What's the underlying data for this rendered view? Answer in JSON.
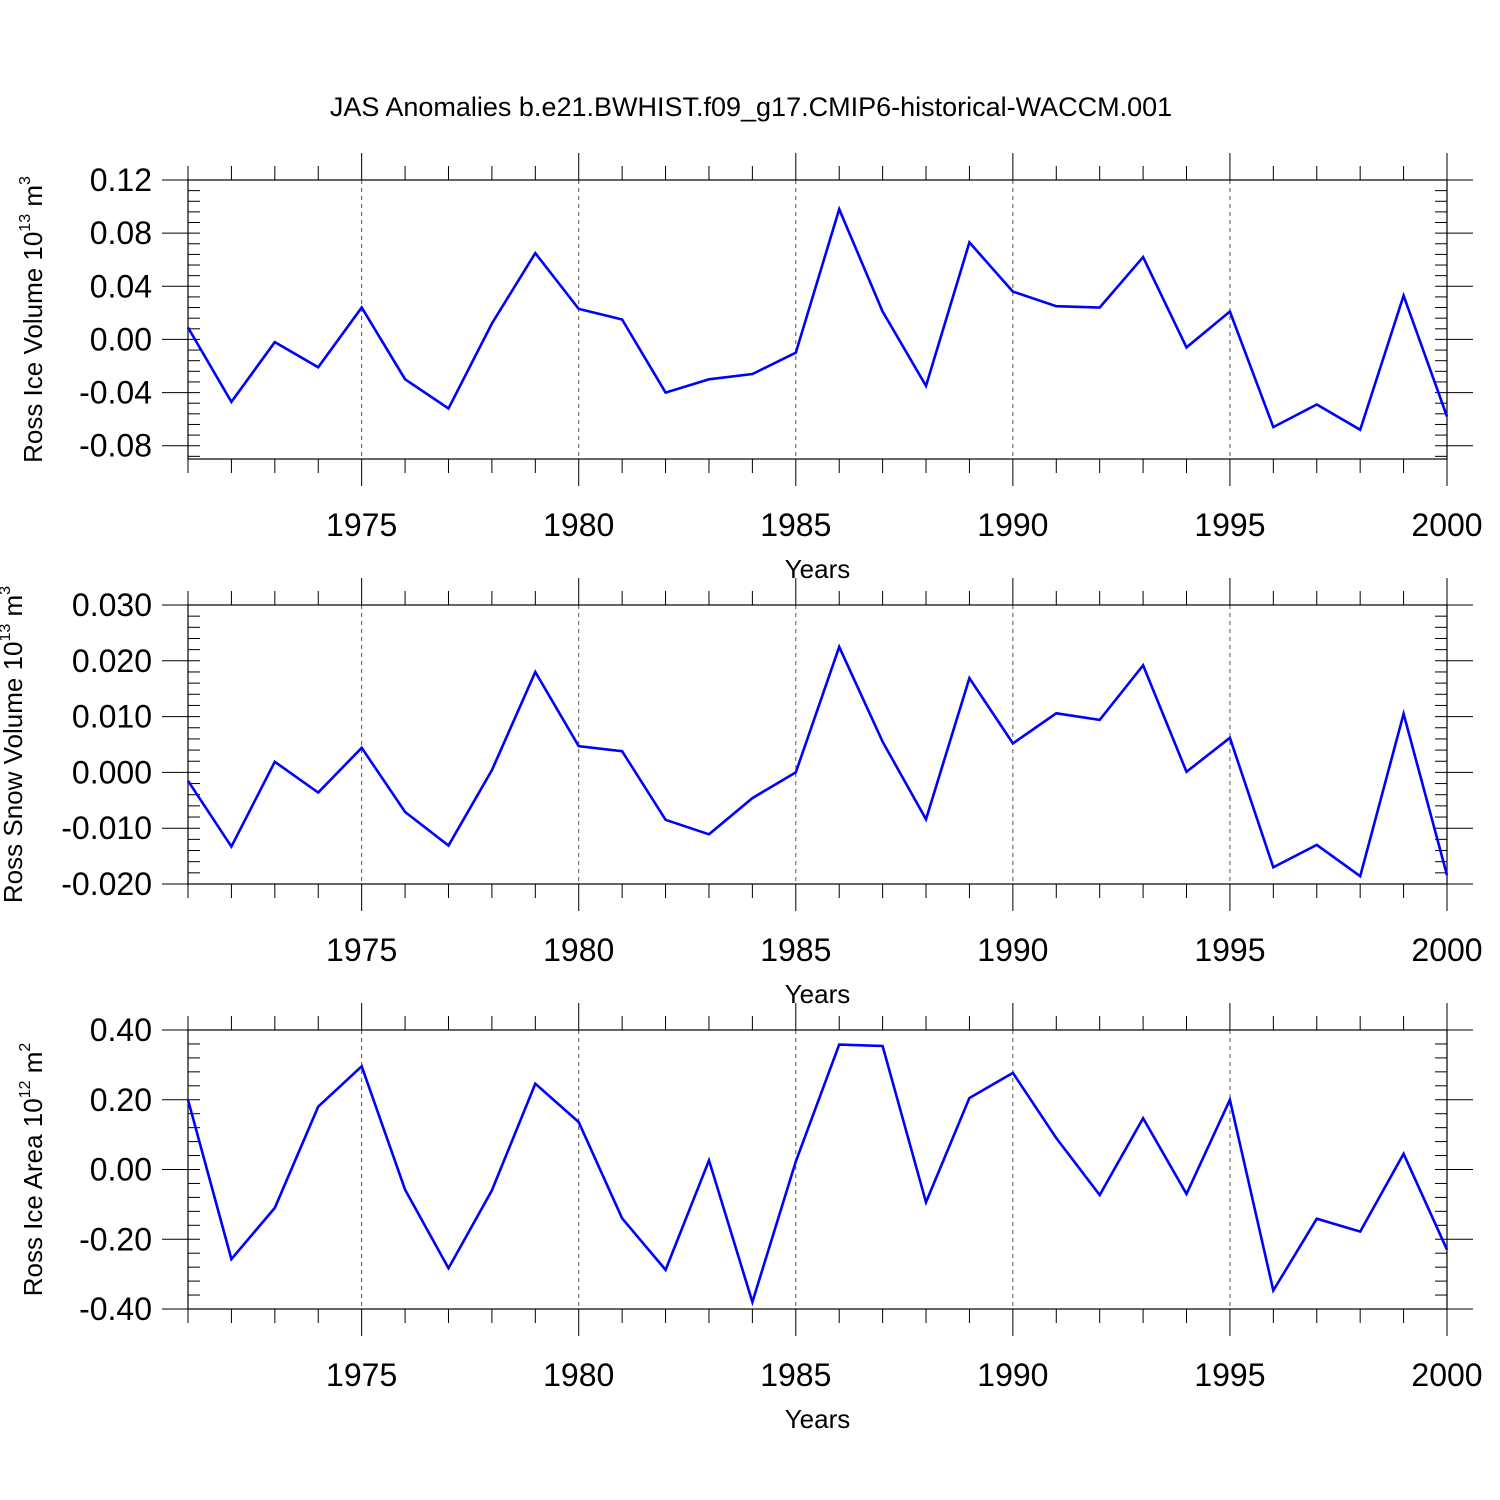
{
  "figure": {
    "title": "JAS Anomalies b.e21.BWHIST.f09_g17.CMIP6-historical-WACCM.001"
  },
  "chart_data": [
    {
      "type": "line",
      "ylabel": "Ross Ice Volume 10",
      "ylabel_exp": "13",
      "ylabel_unit": " m",
      "ylabel_unit_exp": "3",
      "xlabel": "Years",
      "xlim": [
        1971,
        2000
      ],
      "ylim": [
        -0.09,
        0.12
      ],
      "yticks": [
        -0.08,
        -0.04,
        0.0,
        0.04,
        0.08,
        0.12
      ],
      "ytick_labels": [
        "-0.08",
        "-0.04",
        "0.00",
        "0.04",
        "0.08",
        "0.12"
      ],
      "xticks": [
        1975,
        1980,
        1985,
        1990,
        1995,
        2000
      ],
      "xtick_labels": [
        "1975",
        "1980",
        "1985",
        "1990",
        "1995",
        "2000"
      ],
      "line_color": "#0000ff",
      "grid": "dashed vertical at major x ticks",
      "x": [
        1971,
        1972,
        1973,
        1974,
        1975,
        1976,
        1977,
        1978,
        1979,
        1980,
        1981,
        1982,
        1983,
        1984,
        1985,
        1986,
        1987,
        1988,
        1989,
        1990,
        1991,
        1992,
        1993,
        1994,
        1995,
        1996,
        1997,
        1998,
        1999,
        2000
      ],
      "y": [
        0.009,
        -0.047,
        -0.002,
        -0.021,
        0.024,
        -0.03,
        -0.052,
        0.012,
        0.065,
        0.023,
        0.015,
        -0.04,
        -0.03,
        -0.026,
        -0.01,
        0.098,
        0.021,
        -0.035,
        0.073,
        0.036,
        0.025,
        0.024,
        0.062,
        -0.006,
        0.021,
        -0.066,
        -0.049,
        -0.068,
        0.033,
        -0.058
      ]
    },
    {
      "type": "line",
      "ylabel": "Ross Snow Volume 10",
      "ylabel_exp": "13",
      "ylabel_unit": " m",
      "ylabel_unit_exp": "3",
      "xlabel": "Years",
      "xlim": [
        1971,
        2000
      ],
      "ylim": [
        -0.02,
        0.03
      ],
      "yticks": [
        -0.02,
        -0.01,
        0.0,
        0.01,
        0.02,
        0.03
      ],
      "ytick_labels": [
        "-0.020",
        "-0.010",
        "0.000",
        "0.010",
        "0.020",
        "0.030"
      ],
      "xticks": [
        1975,
        1980,
        1985,
        1990,
        1995,
        2000
      ],
      "xtick_labels": [
        "1975",
        "1980",
        "1985",
        "1990",
        "1995",
        "2000"
      ],
      "line_color": "#0000ff",
      "grid": "dashed vertical at major x ticks",
      "x": [
        1971,
        1972,
        1973,
        1974,
        1975,
        1976,
        1977,
        1978,
        1979,
        1980,
        1981,
        1982,
        1983,
        1984,
        1985,
        1986,
        1987,
        1988,
        1989,
        1990,
        1991,
        1992,
        1993,
        1994,
        1995,
        1996,
        1997,
        1998,
        1999,
        2000
      ],
      "y": [
        -0.0015,
        -0.0133,
        0.0019,
        -0.0036,
        0.0044,
        -0.0071,
        -0.0131,
        0.0004,
        0.018,
        0.0047,
        0.0038,
        -0.0085,
        -0.0111,
        -0.0046,
        0.0,
        0.0225,
        0.0055,
        -0.0084,
        0.0169,
        0.0052,
        0.0106,
        0.0094,
        0.0192,
        0.0001,
        0.0062,
        -0.017,
        -0.013,
        -0.0186,
        0.0105,
        -0.0184
      ]
    },
    {
      "type": "line",
      "ylabel": "Ross Ice Area 10",
      "ylabel_exp": "12",
      "ylabel_unit": " m",
      "ylabel_unit_exp": "2",
      "xlabel": "Years",
      "xlim": [
        1971,
        2000
      ],
      "ylim": [
        -0.4,
        0.4
      ],
      "yticks": [
        -0.4,
        -0.2,
        0.0,
        0.2,
        0.4
      ],
      "ytick_labels": [
        "-0.40",
        "-0.20",
        "0.00",
        "0.20",
        "0.40"
      ],
      "xticks": [
        1975,
        1980,
        1985,
        1990,
        1995,
        2000
      ],
      "xtick_labels": [
        "1975",
        "1980",
        "1985",
        "1990",
        "1995",
        "2000"
      ],
      "line_color": "#0000ff",
      "grid": "dashed vertical at major x ticks",
      "x": [
        1971,
        1972,
        1973,
        1974,
        1975,
        1976,
        1977,
        1978,
        1979,
        1980,
        1981,
        1982,
        1983,
        1984,
        1985,
        1986,
        1987,
        1988,
        1989,
        1990,
        1991,
        1992,
        1993,
        1994,
        1995,
        1996,
        1997,
        1998,
        1999,
        2000
      ],
      "y": [
        0.2,
        -0.257,
        -0.11,
        0.18,
        0.296,
        -0.058,
        -0.283,
        -0.06,
        0.246,
        0.136,
        -0.14,
        -0.288,
        0.026,
        -0.38,
        0.023,
        0.358,
        0.354,
        -0.094,
        0.205,
        0.277,
        0.09,
        -0.073,
        0.147,
        -0.07,
        0.2,
        -0.347,
        -0.141,
        -0.178,
        0.045,
        -0.23
      ]
    }
  ]
}
